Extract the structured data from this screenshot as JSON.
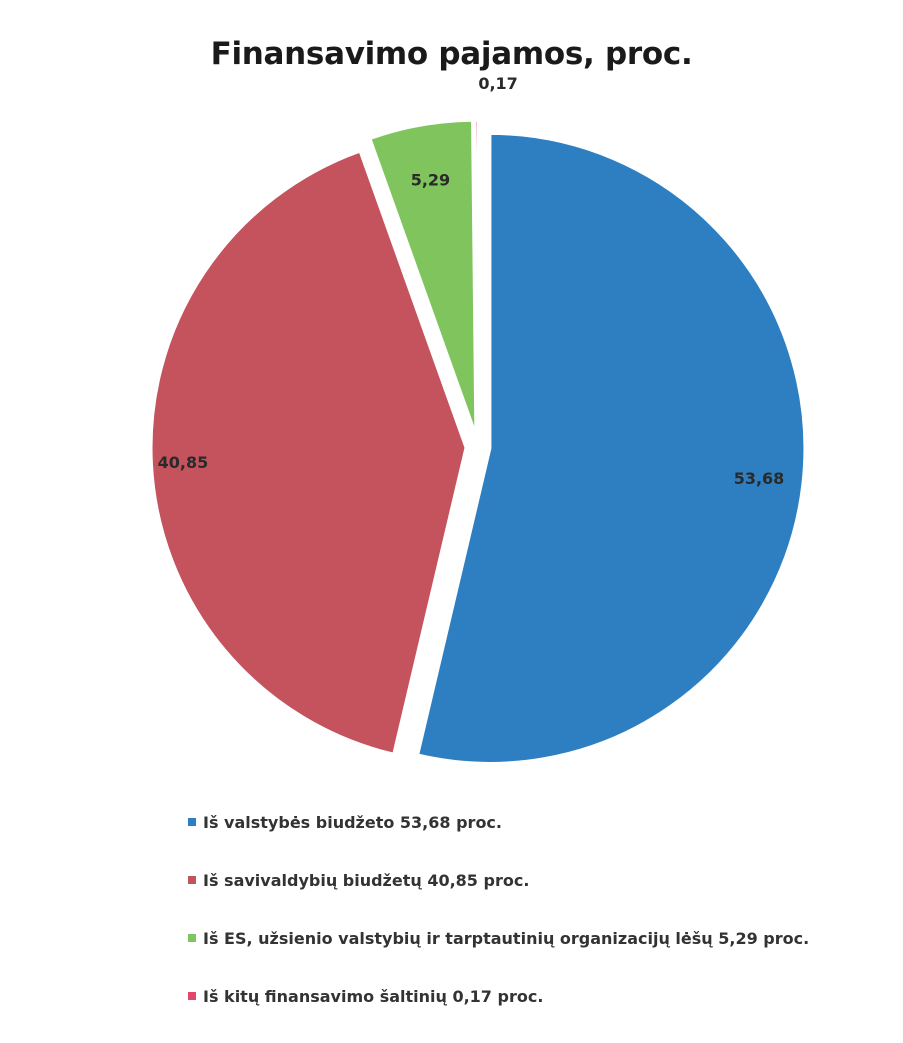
{
  "chart_data": {
    "type": "pie",
    "title": "Finansavimo pajamos, proc.",
    "slices": [
      {
        "label": "Iš valstybės biudžeto 53,68 proc.",
        "value": 53.68,
        "data_label": "53,68",
        "color": "#2e7fc1"
      },
      {
        "label": "Iš savivaldybių biudžetų 40,85 proc.",
        "value": 40.85,
        "data_label": "40,85",
        "color": "#c4535d"
      },
      {
        "label": "Iš ES, užsienio valstybių ir tarptautinių organizacijų lėšų 5,29 proc.",
        "value": 5.29,
        "data_label": "5,29",
        "color": "#80c45e"
      },
      {
        "label": "Iš kitų finansavimo šaltinių 0,17 proc.",
        "value": 0.17,
        "data_label": "0,17",
        "color": "#e0476a"
      }
    ],
    "legend_position": "bottom",
    "exploded": true
  }
}
